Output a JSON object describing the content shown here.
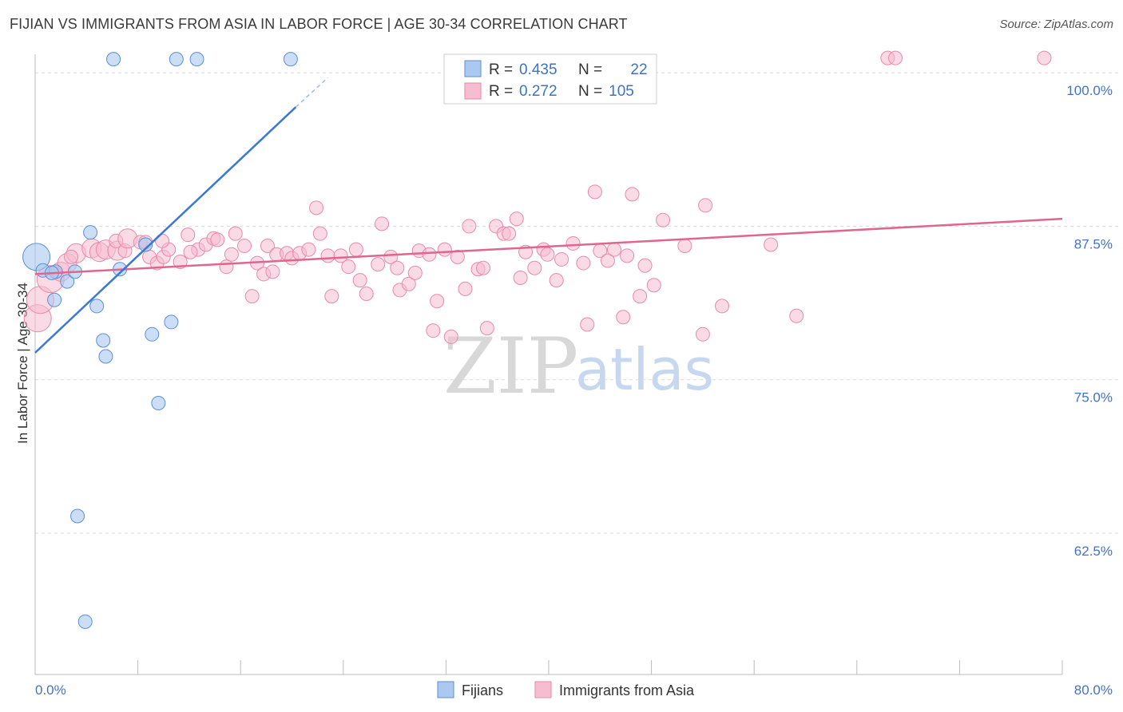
{
  "header": {
    "title": "FIJIAN VS IMMIGRANTS FROM ASIA IN LABOR FORCE | AGE 30-34 CORRELATION CHART",
    "source": "Source: ZipAtlas.com"
  },
  "watermark": {
    "zip": "ZIP",
    "atlas": "atlas"
  },
  "colors": {
    "fijians_fill": "#aac8f0",
    "fijians_stroke": "#5b8fd6",
    "fijians_line": "#3a78d4",
    "asia_fill": "#f6bcd0",
    "asia_stroke": "#e98aa8",
    "asia_line": "#e0658f",
    "grid": "#d9d9d9",
    "axis": "#bbbbbb",
    "tick_label": "#4472c4"
  },
  "chart_data": {
    "type": "scatter",
    "title": "FIJIAN VS IMMIGRANTS FROM ASIA IN LABOR FORCE | AGE 30-34 CORRELATION CHART",
    "xlabel": "",
    "ylabel": "In Labor Force | Age 30-34",
    "xlim": [
      0,
      80
    ],
    "ylim": [
      51,
      101.5
    ],
    "x_tick_labels": [
      "0.0%",
      "80.0%"
    ],
    "y_ticks": [
      100.0,
      87.5,
      75.0,
      62.5
    ],
    "y_tick_labels": [
      "100.0%",
      "87.5%",
      "75.0%",
      "62.5%"
    ],
    "legend": {
      "placement": "top-center",
      "rows": [
        {
          "r_label": "R =",
          "r_value": "0.435",
          "n_label": "N =",
          "n_value": "22"
        },
        {
          "r_label": "R =",
          "r_value": "0.272",
          "n_label": "N =",
          "n_value": "105"
        }
      ]
    },
    "series": [
      {
        "name": "Fijians",
        "color": "#aac8f0",
        "points": [
          {
            "x": 0.1,
            "y": 85.0,
            "s": 3
          },
          {
            "x": 0.6,
            "y": 83.9,
            "s": 1
          },
          {
            "x": 1.6,
            "y": 83.8,
            "s": 1
          },
          {
            "x": 2.5,
            "y": 83.0,
            "s": 1
          },
          {
            "x": 3.1,
            "y": 83.8,
            "s": 1
          },
          {
            "x": 1.5,
            "y": 81.5,
            "s": 1
          },
          {
            "x": 4.3,
            "y": 87.0,
            "s": 1
          },
          {
            "x": 8.6,
            "y": 86.0,
            "s": 1
          },
          {
            "x": 6.6,
            "y": 84.0,
            "s": 1
          },
          {
            "x": 4.8,
            "y": 81.0,
            "s": 1
          },
          {
            "x": 5.3,
            "y": 78.2,
            "s": 1
          },
          {
            "x": 5.5,
            "y": 76.9,
            "s": 1
          },
          {
            "x": 9.1,
            "y": 78.7,
            "s": 1
          },
          {
            "x": 10.6,
            "y": 79.7,
            "s": 1
          },
          {
            "x": 9.6,
            "y": 73.1,
            "s": 1
          },
          {
            "x": 3.3,
            "y": 63.9,
            "s": 1
          },
          {
            "x": 3.9,
            "y": 55.3,
            "s": 1
          },
          {
            "x": 6.1,
            "y": 101.1,
            "s": 1
          },
          {
            "x": 11.0,
            "y": 101.1,
            "s": 1
          },
          {
            "x": 12.6,
            "y": 101.1,
            "s": 1
          },
          {
            "x": 19.9,
            "y": 101.1,
            "s": 1
          },
          {
            "x": 1.3,
            "y": 83.7,
            "s": 1
          }
        ],
        "trend": {
          "x0": 0,
          "y0": 77.2,
          "x1": 20.3,
          "y1": 97.2,
          "dash_to_x": 22.8,
          "dash_to_y": 99.6
        }
      },
      {
        "name": "Immigrants from Asia",
        "color": "#f6bcd0",
        "points": [
          {
            "x": 0.2,
            "y": 80.0,
            "s": 3
          },
          {
            "x": 0.4,
            "y": 81.5,
            "s": 3
          },
          {
            "x": 1.2,
            "y": 83.2,
            "s": 3
          },
          {
            "x": 2.0,
            "y": 83.8,
            "s": 2
          },
          {
            "x": 2.5,
            "y": 84.5,
            "s": 2
          },
          {
            "x": 3.2,
            "y": 85.3,
            "s": 2
          },
          {
            "x": 4.4,
            "y": 85.7,
            "s": 2
          },
          {
            "x": 5.0,
            "y": 85.4,
            "s": 2
          },
          {
            "x": 5.5,
            "y": 85.6,
            "s": 2
          },
          {
            "x": 6.4,
            "y": 85.5,
            "s": 2
          },
          {
            "x": 7.0,
            "y": 85.5,
            "s": 1
          },
          {
            "x": 6.3,
            "y": 86.3,
            "s": 1
          },
          {
            "x": 7.2,
            "y": 86.5,
            "s": 2
          },
          {
            "x": 8.2,
            "y": 86.2,
            "s": 1
          },
          {
            "x": 8.6,
            "y": 86.2,
            "s": 1
          },
          {
            "x": 8.9,
            "y": 85.0,
            "s": 1
          },
          {
            "x": 9.5,
            "y": 84.5,
            "s": 1
          },
          {
            "x": 10.0,
            "y": 85.0,
            "s": 1
          },
          {
            "x": 10.4,
            "y": 85.6,
            "s": 1
          },
          {
            "x": 11.3,
            "y": 84.6,
            "s": 1
          },
          {
            "x": 11.9,
            "y": 86.8,
            "s": 1
          },
          {
            "x": 12.7,
            "y": 85.6,
            "s": 1
          },
          {
            "x": 13.3,
            "y": 86.0,
            "s": 1
          },
          {
            "x": 13.9,
            "y": 86.5,
            "s": 1
          },
          {
            "x": 14.2,
            "y": 86.4,
            "s": 1
          },
          {
            "x": 14.9,
            "y": 84.2,
            "s": 1
          },
          {
            "x": 15.3,
            "y": 85.2,
            "s": 1
          },
          {
            "x": 15.6,
            "y": 86.9,
            "s": 1
          },
          {
            "x": 16.3,
            "y": 85.9,
            "s": 1
          },
          {
            "x": 16.9,
            "y": 81.8,
            "s": 1
          },
          {
            "x": 17.3,
            "y": 84.5,
            "s": 1
          },
          {
            "x": 17.8,
            "y": 83.6,
            "s": 1
          },
          {
            "x": 18.1,
            "y": 85.9,
            "s": 1
          },
          {
            "x": 18.5,
            "y": 83.8,
            "s": 1
          },
          {
            "x": 18.8,
            "y": 85.2,
            "s": 1
          },
          {
            "x": 19.6,
            "y": 85.3,
            "s": 1
          },
          {
            "x": 20.0,
            "y": 84.9,
            "s": 1
          },
          {
            "x": 20.6,
            "y": 85.3,
            "s": 1
          },
          {
            "x": 21.3,
            "y": 85.6,
            "s": 1
          },
          {
            "x": 21.9,
            "y": 89.0,
            "s": 1
          },
          {
            "x": 22.2,
            "y": 86.9,
            "s": 1
          },
          {
            "x": 22.8,
            "y": 85.1,
            "s": 1
          },
          {
            "x": 23.1,
            "y": 81.8,
            "s": 1
          },
          {
            "x": 23.8,
            "y": 85.1,
            "s": 1
          },
          {
            "x": 24.4,
            "y": 84.2,
            "s": 1
          },
          {
            "x": 25.0,
            "y": 85.6,
            "s": 1
          },
          {
            "x": 25.3,
            "y": 83.1,
            "s": 1
          },
          {
            "x": 25.8,
            "y": 82.0,
            "s": 1
          },
          {
            "x": 26.7,
            "y": 84.4,
            "s": 1
          },
          {
            "x": 27.0,
            "y": 87.7,
            "s": 1
          },
          {
            "x": 27.7,
            "y": 85.0,
            "s": 1
          },
          {
            "x": 28.2,
            "y": 84.1,
            "s": 1
          },
          {
            "x": 28.4,
            "y": 82.3,
            "s": 1
          },
          {
            "x": 29.1,
            "y": 82.8,
            "s": 1
          },
          {
            "x": 29.6,
            "y": 83.7,
            "s": 1
          },
          {
            "x": 29.9,
            "y": 85.5,
            "s": 1
          },
          {
            "x": 30.7,
            "y": 85.2,
            "s": 1
          },
          {
            "x": 31.0,
            "y": 79.0,
            "s": 1
          },
          {
            "x": 31.3,
            "y": 81.4,
            "s": 1
          },
          {
            "x": 31.9,
            "y": 85.6,
            "s": 1
          },
          {
            "x": 32.4,
            "y": 78.5,
            "s": 1
          },
          {
            "x": 32.9,
            "y": 85.0,
            "s": 1
          },
          {
            "x": 33.5,
            "y": 82.4,
            "s": 1
          },
          {
            "x": 33.8,
            "y": 87.5,
            "s": 1
          },
          {
            "x": 34.5,
            "y": 84.0,
            "s": 1
          },
          {
            "x": 34.9,
            "y": 84.1,
            "s": 1
          },
          {
            "x": 35.2,
            "y": 79.2,
            "s": 1
          },
          {
            "x": 35.9,
            "y": 87.5,
            "s": 1
          },
          {
            "x": 36.5,
            "y": 86.9,
            "s": 1
          },
          {
            "x": 36.9,
            "y": 86.9,
            "s": 1
          },
          {
            "x": 37.5,
            "y": 88.1,
            "s": 1
          },
          {
            "x": 37.8,
            "y": 83.3,
            "s": 1
          },
          {
            "x": 38.2,
            "y": 85.4,
            "s": 1
          },
          {
            "x": 38.9,
            "y": 84.1,
            "s": 1
          },
          {
            "x": 39.6,
            "y": 85.6,
            "s": 1
          },
          {
            "x": 39.9,
            "y": 85.2,
            "s": 1
          },
          {
            "x": 40.6,
            "y": 83.1,
            "s": 1
          },
          {
            "x": 41.0,
            "y": 84.8,
            "s": 1
          },
          {
            "x": 41.9,
            "y": 86.1,
            "s": 1
          },
          {
            "x": 42.7,
            "y": 84.5,
            "s": 1
          },
          {
            "x": 43.0,
            "y": 79.5,
            "s": 1
          },
          {
            "x": 43.6,
            "y": 90.3,
            "s": 1
          },
          {
            "x": 44.0,
            "y": 85.5,
            "s": 1
          },
          {
            "x": 44.6,
            "y": 84.7,
            "s": 1
          },
          {
            "x": 45.1,
            "y": 85.6,
            "s": 1
          },
          {
            "x": 45.8,
            "y": 80.1,
            "s": 1
          },
          {
            "x": 46.1,
            "y": 85.1,
            "s": 1
          },
          {
            "x": 46.5,
            "y": 90.1,
            "s": 1
          },
          {
            "x": 47.1,
            "y": 81.8,
            "s": 1
          },
          {
            "x": 47.5,
            "y": 84.3,
            "s": 1
          },
          {
            "x": 48.2,
            "y": 82.7,
            "s": 1
          },
          {
            "x": 48.9,
            "y": 88.0,
            "s": 1
          },
          {
            "x": 50.6,
            "y": 85.9,
            "s": 1
          },
          {
            "x": 52.2,
            "y": 89.2,
            "s": 1
          },
          {
            "x": 52.0,
            "y": 78.7,
            "s": 1
          },
          {
            "x": 53.5,
            "y": 81.0,
            "s": 1
          },
          {
            "x": 57.3,
            "y": 86.0,
            "s": 1
          },
          {
            "x": 59.3,
            "y": 80.2,
            "s": 1
          },
          {
            "x": 66.4,
            "y": 101.2,
            "s": 1
          },
          {
            "x": 67.0,
            "y": 101.2,
            "s": 1
          },
          {
            "x": 78.6,
            "y": 101.2,
            "s": 1
          },
          {
            "x": 9.9,
            "y": 86.3,
            "s": 1
          },
          {
            "x": 12.1,
            "y": 85.4,
            "s": 1
          },
          {
            "x": 2.8,
            "y": 85.0,
            "s": 1
          }
        ],
        "trend": {
          "x0": 0,
          "y0": 83.6,
          "x1": 80,
          "y1": 88.1
        }
      }
    ]
  },
  "bottom_legend": [
    {
      "label": "Fijians"
    },
    {
      "label": "Immigrants from Asia"
    }
  ]
}
